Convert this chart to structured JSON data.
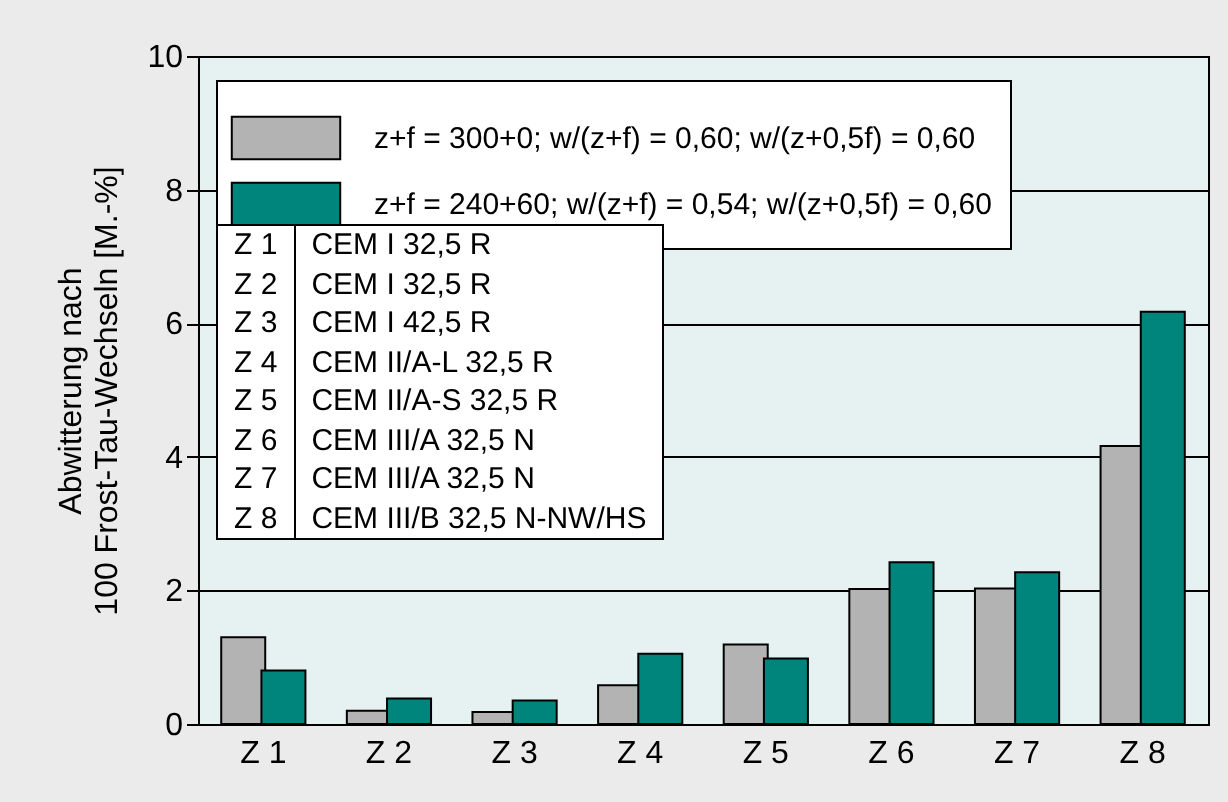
{
  "chart_data": {
    "type": "bar",
    "ylabel": "Abwitterung nach\n100 Frost-Tau-Wechseln [M.-%]",
    "categories": [
      "Z 1",
      "Z 2",
      "Z 3",
      "Z 4",
      "Z 5",
      "Z 6",
      "Z 7",
      "Z 8"
    ],
    "series": [
      {
        "name": "z+f = 300+0; w/(z+f) = 0,60; w/(z+0,5f) = 0,60",
        "color": "#b3b3b3",
        "values": [
          1.3,
          0.2,
          0.18,
          0.58,
          1.19,
          2.02,
          2.03,
          4.16
        ]
      },
      {
        "name": "z+f = 240+60; w/(z+f) = 0,54; w/(z+0,5f) = 0,60",
        "color": "#00857c",
        "values": [
          0.8,
          0.38,
          0.35,
          1.05,
          0.98,
          2.42,
          2.27,
          6.17
        ]
      }
    ],
    "ylim": [
      0,
      10
    ],
    "yticks": [
      0,
      2,
      4,
      6,
      8,
      10
    ],
    "grid": "y",
    "legend": "top left",
    "annotations": [
      "CEM I 32,5 R",
      "CEM I 32,5 R",
      "CEM I 42,5 R",
      "CEM II/A-L 32,5 R",
      "CEM II/A-S 32,5 R",
      "CEM III/A 32,5 N",
      "CEM III/A 32,5 N",
      "CEM III/B 32,5 N-NW/HS"
    ]
  }
}
